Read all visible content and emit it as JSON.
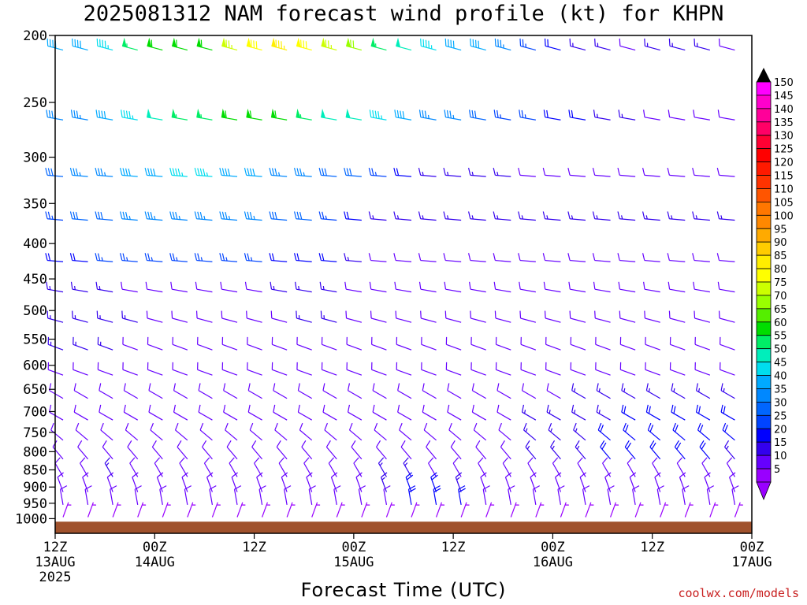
{
  "chart_data": {
    "type": "wind_barb_time_height",
    "title": "2025081312 NAM forecast wind profile (kt) for KHPN",
    "xlabel": "Forecast Time (UTC)",
    "ylabel": "",
    "credit": "coolwx.com/models",
    "y_ticks": [
      "200",
      "250",
      "300",
      "350",
      "400",
      "450",
      "500",
      "550",
      "600",
      "650",
      "700",
      "750",
      "800",
      "850",
      "900",
      "950",
      "1000"
    ],
    "y_values": [
      200,
      250,
      300,
      350,
      400,
      450,
      500,
      550,
      600,
      650,
      700,
      750,
      800,
      850,
      900,
      950,
      1000
    ],
    "x_ticks": [
      {
        "hour": 0,
        "line1": "12Z",
        "line2": "13AUG",
        "line3": "2025"
      },
      {
        "hour": 12,
        "line1": "00Z",
        "line2": "14AUG",
        "line3": ""
      },
      {
        "hour": 24,
        "line1": "12Z",
        "line2": "",
        "line3": ""
      },
      {
        "hour": 36,
        "line1": "00Z",
        "line2": "15AUG",
        "line3": ""
      },
      {
        "hour": 48,
        "line1": "12Z",
        "line2": "",
        "line3": ""
      },
      {
        "hour": 60,
        "line1": "00Z",
        "line2": "16AUG",
        "line3": ""
      },
      {
        "hour": 72,
        "line1": "12Z",
        "line2": "",
        "line3": ""
      },
      {
        "hour": 84,
        "line1": "00Z",
        "line2": "17AUG",
        "line3": ""
      }
    ],
    "x_range_hours": [
      0,
      84
    ],
    "y_range_hpa": [
      200,
      1050
    ],
    "y_scale": "log",
    "barb_interval_hours": 3,
    "colorbar": {
      "labels": [
        "150",
        "145",
        "140",
        "135",
        "130",
        "125",
        "120",
        "115",
        "110",
        "105",
        "100",
        "95",
        "90",
        "85",
        "80",
        "75",
        "70",
        "65",
        "60",
        "55",
        "50",
        "45",
        "40",
        "35",
        "30",
        "25",
        "20",
        "15",
        "10",
        "5"
      ],
      "colors": [
        "#ff00ff",
        "#ff00cc",
        "#ff0099",
        "#ff0066",
        "#ff0033",
        "#ff0000",
        "#ff1a00",
        "#ff3300",
        "#ff5500",
        "#ff7700",
        "#ff8800",
        "#ffaa00",
        "#ffcc00",
        "#ffee00",
        "#ffff00",
        "#ccff00",
        "#99ff00",
        "#55ee00",
        "#00dd00",
        "#00ee66",
        "#00eebb",
        "#00ddee",
        "#00aaff",
        "#0088ff",
        "#0066ff",
        "#0044ff",
        "#0000ff",
        "#3300ee",
        "#6600ff",
        "#9900ff"
      ]
    },
    "terrain": {
      "color": "#a0522d",
      "surface_pressure": 1010
    },
    "barb_levels": [
      {
        "p": 210,
        "dir": 285,
        "spd": [
          40,
          40,
          45,
          55,
          60,
          60,
          60,
          75,
          80,
          85,
          80,
          75,
          70,
          55,
          50,
          45,
          40,
          40,
          35,
          25,
          20,
          15,
          15,
          10,
          15,
          15,
          15,
          10,
          10
        ]
      },
      {
        "p": 265,
        "dir": 280,
        "spd": [
          35,
          35,
          40,
          45,
          50,
          55,
          55,
          60,
          60,
          60,
          55,
          50,
          50,
          45,
          40,
          35,
          35,
          30,
          25,
          25,
          20,
          20,
          15,
          15,
          10,
          10,
          10,
          10,
          10
        ]
      },
      {
        "p": 320,
        "dir": 275,
        "spd": [
          30,
          35,
          35,
          40,
          40,
          45,
          45,
          40,
          40,
          35,
          35,
          30,
          30,
          25,
          20,
          15,
          15,
          15,
          15,
          10,
          10,
          10,
          10,
          10,
          10,
          10,
          10,
          10,
          10
        ]
      },
      {
        "p": 370,
        "dir": 275,
        "spd": [
          25,
          30,
          30,
          35,
          35,
          35,
          35,
          35,
          35,
          30,
          30,
          25,
          20,
          15,
          15,
          15,
          15,
          15,
          15,
          15,
          15,
          15,
          15,
          15,
          15,
          15,
          15,
          15,
          10
        ]
      },
      {
        "p": 425,
        "dir": 275,
        "spd": [
          20,
          20,
          25,
          25,
          25,
          25,
          25,
          25,
          25,
          20,
          20,
          20,
          15,
          10,
          10,
          10,
          10,
          10,
          10,
          10,
          10,
          10,
          10,
          10,
          10,
          10,
          10,
          10,
          10
        ]
      },
      {
        "p": 470,
        "dir": 280,
        "spd": [
          15,
          15,
          15,
          10,
          10,
          10,
          10,
          10,
          10,
          15,
          15,
          15,
          10,
          10,
          10,
          10,
          10,
          10,
          10,
          10,
          10,
          10,
          10,
          10,
          10,
          10,
          10,
          10,
          10
        ]
      },
      {
        "p": 520,
        "dir": 285,
        "spd": [
          15,
          15,
          15,
          15,
          10,
          10,
          10,
          10,
          10,
          10,
          15,
          15,
          10,
          10,
          10,
          10,
          10,
          10,
          10,
          10,
          10,
          10,
          10,
          10,
          10,
          10,
          10,
          10,
          10
        ]
      },
      {
        "p": 570,
        "dir": 290,
        "spd": [
          15,
          15,
          15,
          10,
          10,
          10,
          10,
          10,
          10,
          10,
          10,
          10,
          10,
          10,
          10,
          10,
          10,
          10,
          10,
          10,
          10,
          10,
          10,
          10,
          10,
          10,
          10,
          10,
          10
        ]
      },
      {
        "p": 620,
        "dir": 290,
        "spd": [
          10,
          10,
          10,
          10,
          10,
          10,
          10,
          10,
          10,
          10,
          10,
          10,
          10,
          10,
          10,
          10,
          10,
          10,
          10,
          10,
          10,
          10,
          10,
          10,
          10,
          10,
          10,
          10,
          10
        ]
      },
      {
        "p": 670,
        "dir": 300,
        "spd": [
          10,
          10,
          10,
          10,
          10,
          10,
          10,
          10,
          10,
          10,
          10,
          10,
          10,
          10,
          10,
          10,
          10,
          10,
          10,
          10,
          10,
          15,
          15,
          15,
          15,
          15,
          15,
          15,
          15
        ]
      },
      {
        "p": 720,
        "dir": 300,
        "spd": [
          10,
          10,
          10,
          10,
          10,
          10,
          10,
          10,
          10,
          10,
          10,
          10,
          10,
          10,
          10,
          10,
          10,
          10,
          10,
          15,
          15,
          15,
          15,
          20,
          20,
          20,
          20,
          20,
          20
        ]
      },
      {
        "p": 770,
        "dir": 310,
        "spd": [
          10,
          10,
          10,
          10,
          10,
          10,
          10,
          10,
          10,
          10,
          10,
          10,
          10,
          10,
          10,
          10,
          10,
          10,
          10,
          15,
          15,
          15,
          20,
          20,
          20,
          20,
          20,
          20,
          20
        ]
      },
      {
        "p": 820,
        "dir": 320,
        "spd": [
          10,
          10,
          10,
          10,
          10,
          10,
          10,
          10,
          10,
          10,
          10,
          10,
          10,
          10,
          10,
          10,
          10,
          10,
          10,
          15,
          15,
          15,
          20,
          20,
          20,
          20,
          20,
          15,
          15
        ]
      },
      {
        "p": 870,
        "dir": 330,
        "spd": [
          10,
          10,
          15,
          10,
          10,
          10,
          10,
          10,
          10,
          10,
          10,
          10,
          10,
          15,
          15,
          10,
          10,
          10,
          10,
          10,
          10,
          10,
          10,
          10,
          10,
          10,
          10,
          10,
          10
        ]
      },
      {
        "p": 915,
        "dir": 340,
        "spd": [
          10,
          10,
          10,
          10,
          10,
          10,
          10,
          10,
          10,
          10,
          10,
          10,
          10,
          15,
          20,
          20,
          15,
          10,
          10,
          10,
          10,
          10,
          10,
          10,
          10,
          10,
          10,
          10,
          10
        ]
      },
      {
        "p": 955,
        "dir": 350,
        "spd": [
          10,
          10,
          10,
          10,
          10,
          10,
          10,
          10,
          10,
          10,
          10,
          10,
          10,
          10,
          20,
          20,
          20,
          10,
          10,
          10,
          10,
          10,
          10,
          10,
          10,
          10,
          10,
          10,
          10
        ]
      },
      {
        "p": 995,
        "dir": 20,
        "spd": [
          5,
          5,
          5,
          5,
          5,
          5,
          5,
          5,
          5,
          5,
          5,
          5,
          5,
          5,
          5,
          5,
          5,
          5,
          5,
          5,
          5,
          5,
          5,
          5,
          5,
          5,
          5,
          5,
          5
        ]
      }
    ]
  }
}
